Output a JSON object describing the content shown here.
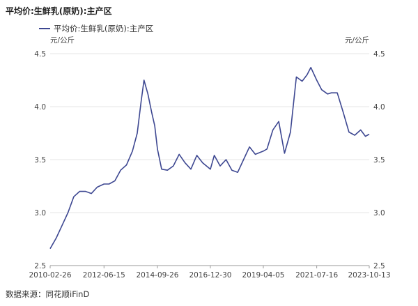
{
  "header": {
    "title": "平均价:生鲜乳(原奶):主产区"
  },
  "legend": {
    "series_label": "平均价:生鲜乳(原奶):主产区",
    "color": "#3d4791"
  },
  "footer": {
    "source": "数据来源：同花顺iFinD"
  },
  "chart_data": {
    "type": "line",
    "title": "平均价:生鲜乳(原奶):主产区",
    "y_unit_left": "元/公斤",
    "y_unit_right": "元/公斤",
    "ylim": [
      2.5,
      4.5
    ],
    "y_ticks": [
      "4.5",
      "4.0",
      "3.5",
      "3.0",
      "2.5"
    ],
    "x_ticks": [
      "2010-02-26",
      "2012-06-15",
      "2014-09-26",
      "2016-12-30",
      "2019-04-05",
      "2021-07-16",
      "2023-10-13"
    ],
    "grid": true,
    "legend_position": "top-left",
    "series": [
      {
        "name": "平均价:生鲜乳(原奶):主产区",
        "color": "#3d4791",
        "x": [
          "2010-02-26",
          "2010-06-01",
          "2010-09-01",
          "2010-12-01",
          "2011-03-01",
          "2011-06-01",
          "2011-09-01",
          "2011-12-01",
          "2012-03-01",
          "2012-06-15",
          "2012-09-01",
          "2012-12-01",
          "2013-03-01",
          "2013-06-01",
          "2013-09-01",
          "2013-11-15",
          "2014-01-15",
          "2014-03-01",
          "2014-05-01",
          "2014-07-01",
          "2014-08-15",
          "2014-09-26",
          "2014-12-01",
          "2015-03-01",
          "2015-06-01",
          "2015-09-01",
          "2015-12-01",
          "2016-03-01",
          "2016-06-01",
          "2016-09-01",
          "2016-12-30",
          "2017-03-01",
          "2017-06-01",
          "2017-09-01",
          "2017-12-01",
          "2018-03-01",
          "2018-06-01",
          "2018-09-01",
          "2018-12-01",
          "2019-04-05",
          "2019-06-01",
          "2019-09-01",
          "2019-12-01",
          "2020-03-01",
          "2020-06-01",
          "2020-09-01",
          "2020-12-01",
          "2021-02-15",
          "2021-04-15",
          "2021-07-16",
          "2021-10-01",
          "2022-01-01",
          "2022-03-01",
          "2022-06-01",
          "2022-09-01",
          "2022-12-01",
          "2023-03-01",
          "2023-06-01",
          "2023-08-15",
          "2023-10-13"
        ],
        "values": [
          2.66,
          2.76,
          2.88,
          3.0,
          3.15,
          3.2,
          3.2,
          3.18,
          3.24,
          3.27,
          3.27,
          3.3,
          3.4,
          3.45,
          3.58,
          3.75,
          4.05,
          4.25,
          4.12,
          3.94,
          3.82,
          3.6,
          3.41,
          3.4,
          3.44,
          3.55,
          3.47,
          3.41,
          3.54,
          3.47,
          3.41,
          3.54,
          3.44,
          3.5,
          3.4,
          3.38,
          3.5,
          3.62,
          3.55,
          3.58,
          3.6,
          3.78,
          3.86,
          3.56,
          3.76,
          4.28,
          4.24,
          4.3,
          4.37,
          4.25,
          4.16,
          4.12,
          4.13,
          4.13,
          3.95,
          3.76,
          3.73,
          3.78,
          3.72,
          3.74
        ]
      }
    ]
  }
}
